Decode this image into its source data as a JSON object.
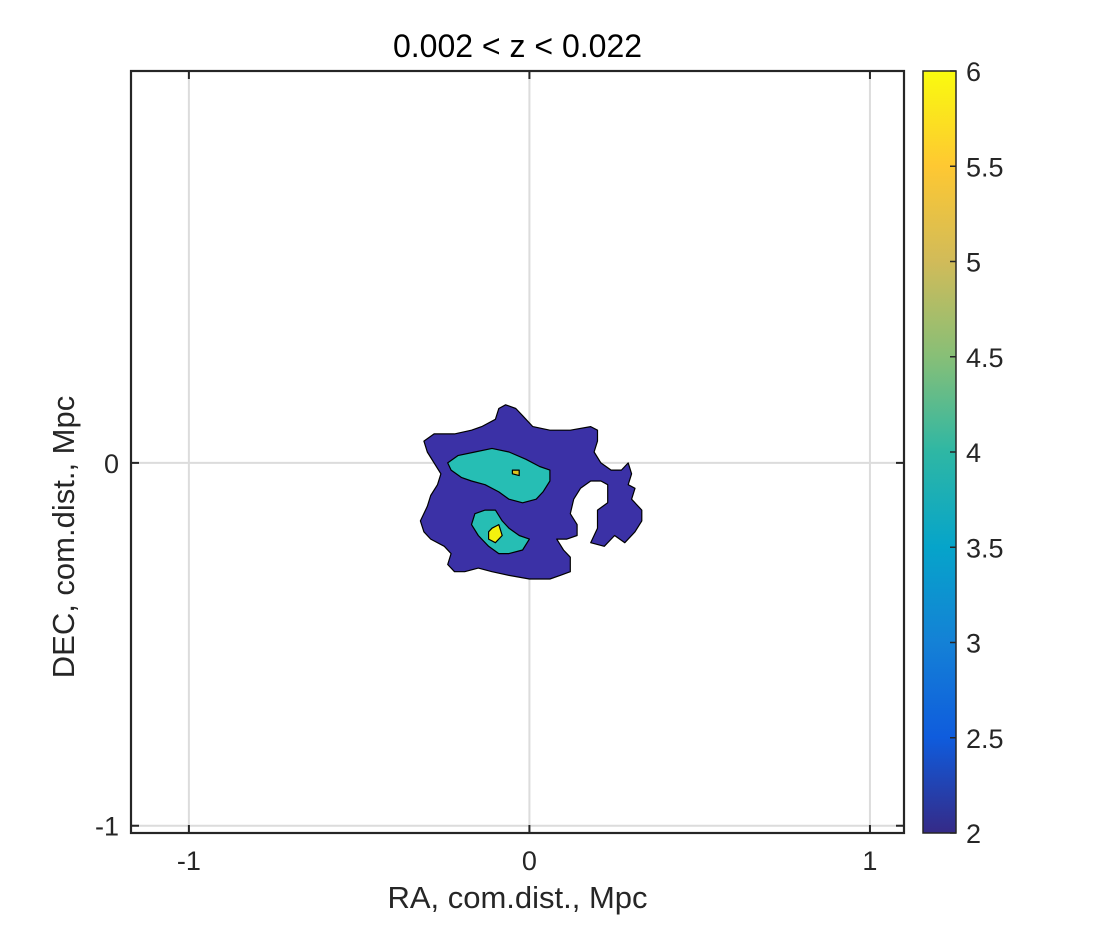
{
  "chart_data": {
    "type": "contour",
    "title": "0.002 < z < 0.022",
    "xlabel": "RA, com.dist., Mpc",
    "ylabel": "DEC, com.dist., Mpc",
    "xlim": [
      -1.17,
      1.1
    ],
    "ylim": [
      -1.02,
      1.08
    ],
    "grid": true,
    "xticks": [
      {
        "value": -1,
        "label": "-1"
      },
      {
        "value": 0,
        "label": "0"
      },
      {
        "value": 1,
        "label": "1"
      }
    ],
    "yticks": [
      {
        "value": 0,
        "label": "0"
      },
      {
        "value": -1,
        "label": "-1"
      }
    ],
    "colorbar": {
      "range": [
        2,
        6
      ],
      "ticks": [
        {
          "value": 6,
          "label": "6"
        },
        {
          "value": 5.5,
          "label": "5.5"
        },
        {
          "value": 5,
          "label": "5"
        },
        {
          "value": 4.5,
          "label": "4.5"
        },
        {
          "value": 4,
          "label": "4"
        },
        {
          "value": 3.5,
          "label": "3.5"
        },
        {
          "value": 3,
          "label": "3"
        },
        {
          "value": 2.5,
          "label": "2.5"
        },
        {
          "value": 2,
          "label": "2"
        }
      ],
      "colormap": "parula",
      "colors": [
        "#352A87",
        "#0F5CDD",
        "#1481D6",
        "#06A4CA",
        "#2EB7A4",
        "#87BF77",
        "#D1BB59",
        "#FEC832",
        "#F9FB0E"
      ]
    },
    "contours": [
      {
        "level": 2,
        "color": "#3B31A6",
        "points": [
          [
            -0.31,
            0.06
          ],
          [
            -0.28,
            0.08
          ],
          [
            -0.22,
            0.08
          ],
          [
            -0.17,
            0.09
          ],
          [
            -0.14,
            0.1
          ],
          [
            -0.1,
            0.12
          ],
          [
            -0.09,
            0.15
          ],
          [
            -0.07,
            0.16
          ],
          [
            -0.04,
            0.15
          ],
          [
            -0.02,
            0.13
          ],
          [
            0.01,
            0.1
          ],
          [
            0.06,
            0.09
          ],
          [
            0.12,
            0.09
          ],
          [
            0.18,
            0.1
          ],
          [
            0.2,
            0.09
          ],
          [
            0.2,
            0.06
          ],
          [
            0.19,
            0.03
          ],
          [
            0.21,
            0.0
          ],
          [
            0.24,
            -0.02
          ],
          [
            0.27,
            -0.02
          ],
          [
            0.29,
            0.0
          ],
          [
            0.3,
            -0.03
          ],
          [
            0.29,
            -0.06
          ],
          [
            0.31,
            -0.07
          ],
          [
            0.3,
            -0.1
          ],
          [
            0.33,
            -0.13
          ],
          [
            0.33,
            -0.16
          ],
          [
            0.31,
            -0.19
          ],
          [
            0.28,
            -0.22
          ],
          [
            0.25,
            -0.2
          ],
          [
            0.22,
            -0.23
          ],
          [
            0.18,
            -0.22
          ],
          [
            0.2,
            -0.18
          ],
          [
            0.2,
            -0.13
          ],
          [
            0.23,
            -0.11
          ],
          [
            0.23,
            -0.06
          ],
          [
            0.21,
            -0.05
          ],
          [
            0.18,
            -0.05
          ],
          [
            0.15,
            -0.07
          ],
          [
            0.13,
            -0.1
          ],
          [
            0.12,
            -0.14
          ],
          [
            0.14,
            -0.17
          ],
          [
            0.14,
            -0.2
          ],
          [
            0.11,
            -0.21
          ],
          [
            0.08,
            -0.21
          ],
          [
            0.1,
            -0.24
          ],
          [
            0.12,
            -0.26
          ],
          [
            0.12,
            -0.3
          ],
          [
            0.09,
            -0.31
          ],
          [
            0.06,
            -0.32
          ],
          [
            0.0,
            -0.32
          ],
          [
            -0.06,
            -0.31
          ],
          [
            -0.11,
            -0.3
          ],
          [
            -0.15,
            -0.29
          ],
          [
            -0.19,
            -0.3
          ],
          [
            -0.22,
            -0.3
          ],
          [
            -0.24,
            -0.28
          ],
          [
            -0.23,
            -0.25
          ],
          [
            -0.25,
            -0.23
          ],
          [
            -0.29,
            -0.21
          ],
          [
            -0.31,
            -0.19
          ],
          [
            -0.32,
            -0.16
          ],
          [
            -0.3,
            -0.12
          ],
          [
            -0.29,
            -0.09
          ],
          [
            -0.27,
            -0.06
          ],
          [
            -0.26,
            -0.03
          ],
          [
            -0.28,
            0.0
          ],
          [
            -0.3,
            0.03
          ]
        ]
      },
      {
        "level": 4,
        "color": "#26BEB4",
        "points": [
          [
            -0.24,
            0.0
          ],
          [
            -0.21,
            0.02
          ],
          [
            -0.16,
            0.03
          ],
          [
            -0.11,
            0.04
          ],
          [
            -0.06,
            0.03
          ],
          [
            -0.01,
            0.01
          ],
          [
            0.03,
            -0.01
          ],
          [
            0.06,
            -0.02
          ],
          [
            0.06,
            -0.05
          ],
          [
            0.04,
            -0.08
          ],
          [
            0.02,
            -0.1
          ],
          [
            -0.02,
            -0.11
          ],
          [
            -0.06,
            -0.1
          ],
          [
            -0.09,
            -0.08
          ],
          [
            -0.13,
            -0.06
          ],
          [
            -0.17,
            -0.05
          ],
          [
            -0.2,
            -0.04
          ],
          [
            -0.23,
            -0.02
          ]
        ]
      },
      {
        "level": 4,
        "color": "#26BEB4",
        "points": [
          [
            -0.16,
            -0.14
          ],
          [
            -0.13,
            -0.13
          ],
          [
            -0.1,
            -0.13
          ],
          [
            -0.08,
            -0.16
          ],
          [
            -0.06,
            -0.18
          ],
          [
            -0.03,
            -0.2
          ],
          [
            0.0,
            -0.21
          ],
          [
            -0.02,
            -0.24
          ],
          [
            -0.06,
            -0.25
          ],
          [
            -0.09,
            -0.25
          ],
          [
            -0.12,
            -0.23
          ],
          [
            -0.15,
            -0.2
          ],
          [
            -0.17,
            -0.17
          ]
        ]
      },
      {
        "level": 6,
        "color": "#F3F20E",
        "points": [
          [
            -0.11,
            -0.18
          ],
          [
            -0.09,
            -0.17
          ],
          [
            -0.08,
            -0.2
          ],
          [
            -0.1,
            -0.22
          ],
          [
            -0.12,
            -0.21
          ],
          [
            -0.12,
            -0.19
          ]
        ]
      },
      {
        "level": 5,
        "color": "#E0C21E",
        "points": [
          [
            -0.05,
            -0.02
          ],
          [
            -0.03,
            -0.02
          ],
          [
            -0.03,
            -0.035
          ],
          [
            -0.05,
            -0.03
          ]
        ]
      }
    ]
  }
}
